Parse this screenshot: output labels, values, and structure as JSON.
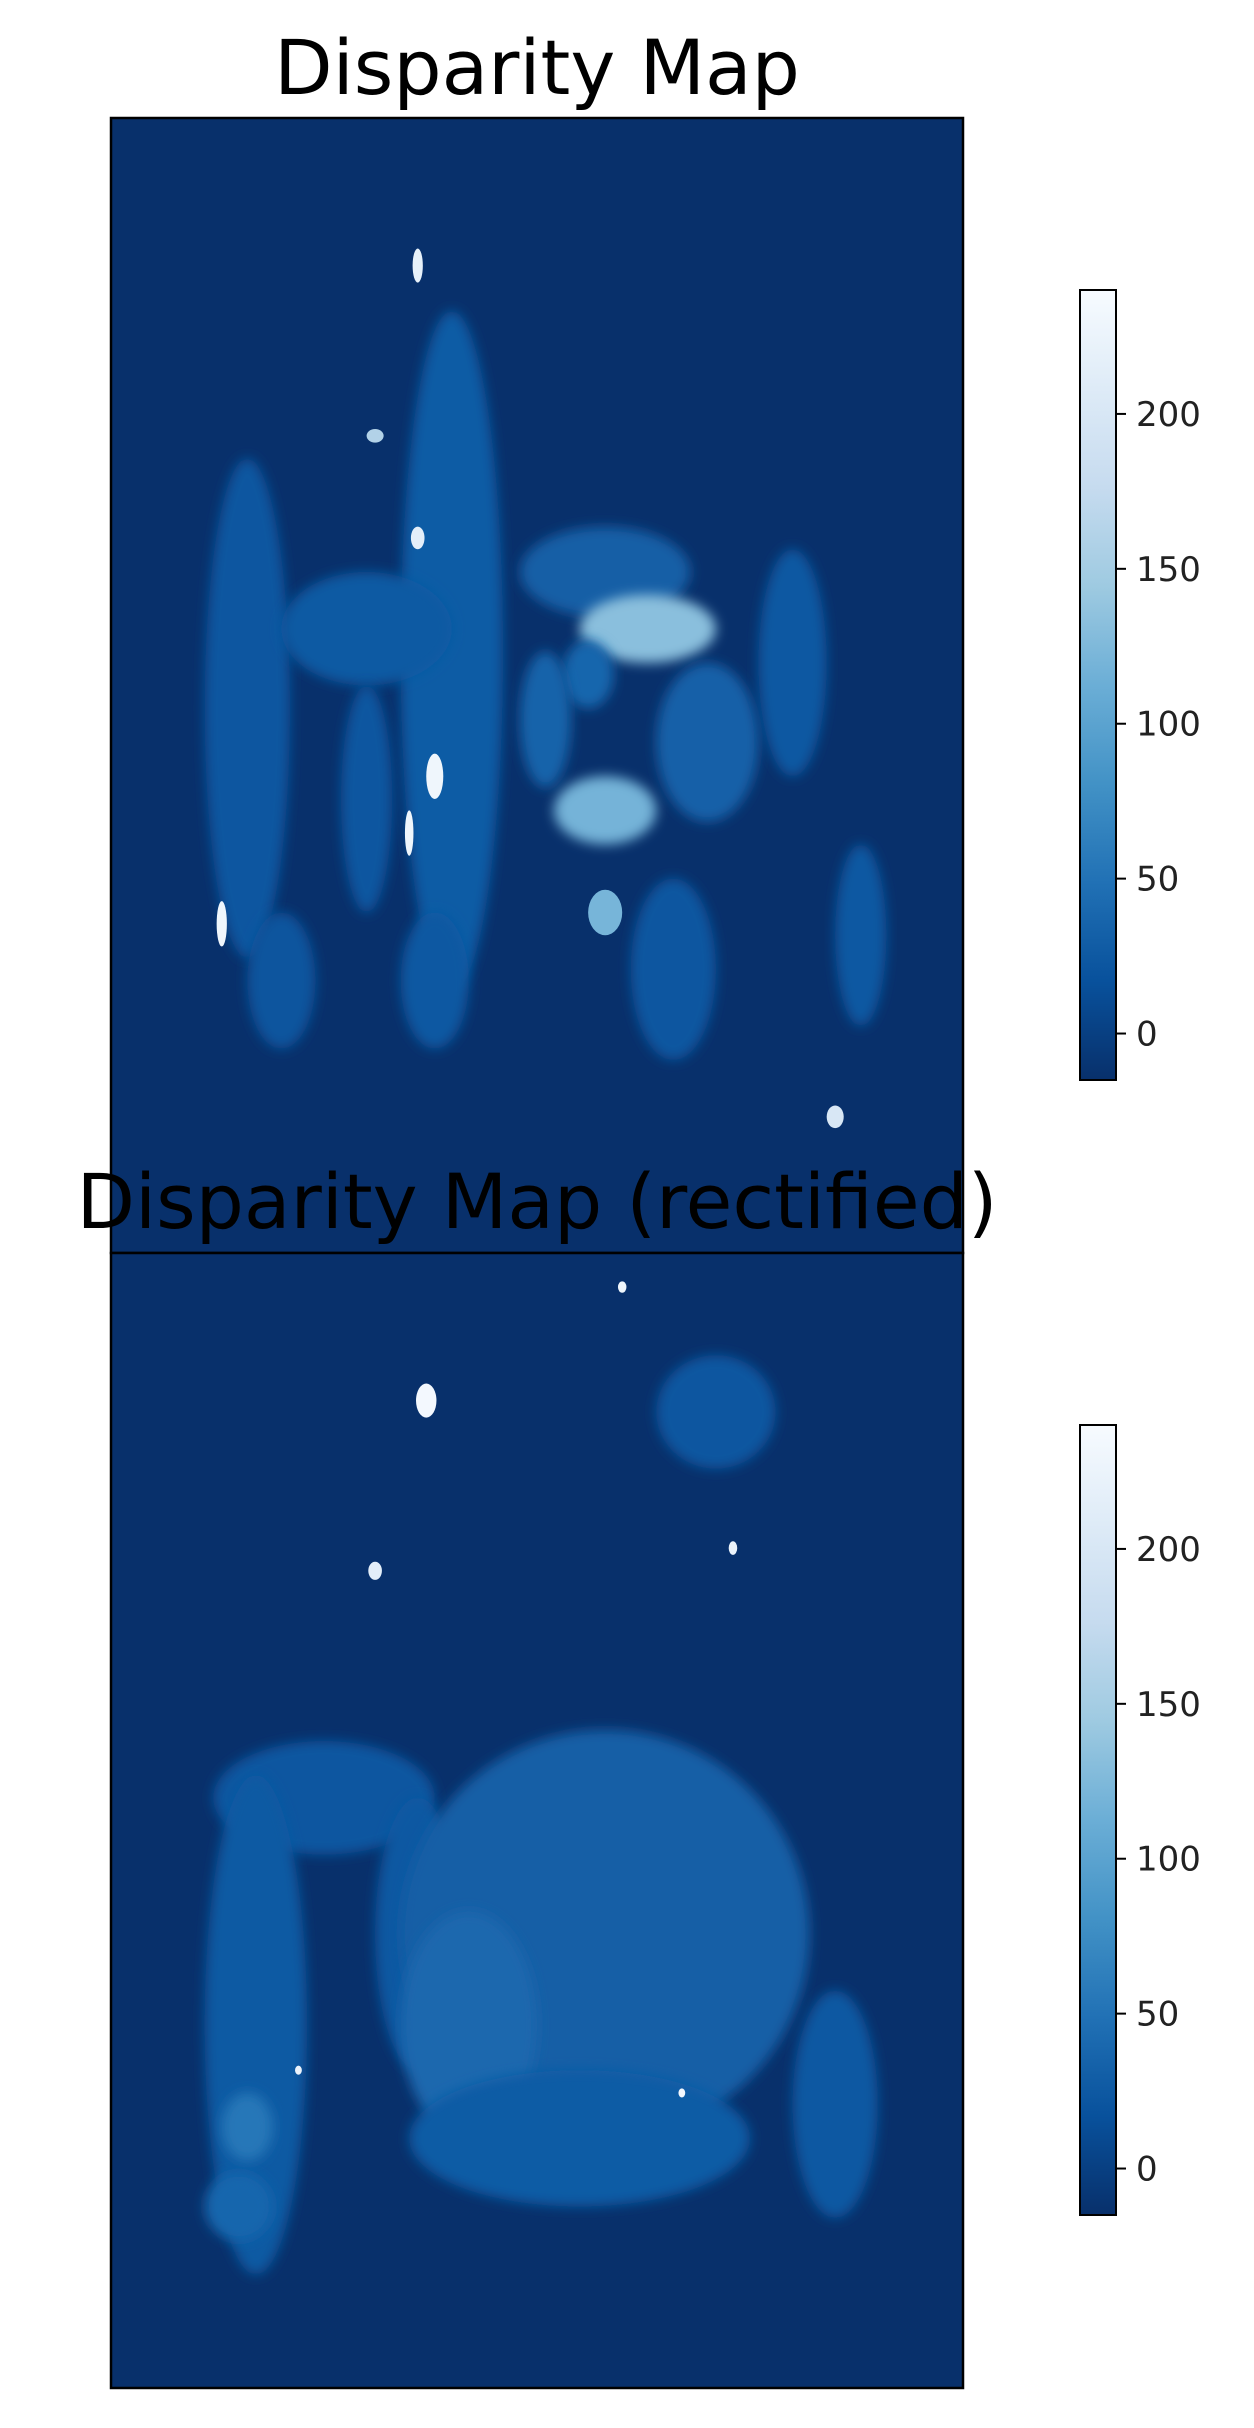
{
  "chart_data": [
    {
      "type": "heatmap",
      "title": "Disparity Map",
      "xlabel": "",
      "ylabel": "",
      "colormap": "Blues_r",
      "colorbar": {
        "ticks": [
          0,
          50,
          100,
          150,
          200
        ],
        "range": [
          -15,
          240
        ]
      },
      "background_value": -15,
      "grid": false,
      "axis_ticks": false,
      "blobs": [
        {
          "x": 0.4,
          "y": 0.47,
          "rx": 0.06,
          "ry": 0.3,
          "v": 28
        },
        {
          "x": 0.16,
          "y": 0.52,
          "rx": 0.05,
          "ry": 0.22,
          "v": 22
        },
        {
          "x": 0.3,
          "y": 0.45,
          "rx": 0.1,
          "ry": 0.05,
          "v": 26
        },
        {
          "x": 0.58,
          "y": 0.4,
          "rx": 0.1,
          "ry": 0.04,
          "v": 30
        },
        {
          "x": 0.63,
          "y": 0.45,
          "rx": 0.08,
          "ry": 0.03,
          "v": 132
        },
        {
          "x": 0.56,
          "y": 0.49,
          "rx": 0.03,
          "ry": 0.03,
          "v": 38
        },
        {
          "x": 0.51,
          "y": 0.53,
          "rx": 0.03,
          "ry": 0.06,
          "v": 35
        },
        {
          "x": 0.58,
          "y": 0.61,
          "rx": 0.06,
          "ry": 0.03,
          "v": 118
        },
        {
          "x": 0.7,
          "y": 0.55,
          "rx": 0.06,
          "ry": 0.07,
          "v": 32
        },
        {
          "x": 0.8,
          "y": 0.48,
          "rx": 0.04,
          "ry": 0.1,
          "v": 25
        },
        {
          "x": 0.58,
          "y": 0.7,
          "rx": 0.02,
          "ry": 0.02,
          "v": 120
        },
        {
          "x": 0.66,
          "y": 0.75,
          "rx": 0.05,
          "ry": 0.08,
          "v": 22
        },
        {
          "x": 0.38,
          "y": 0.76,
          "rx": 0.04,
          "ry": 0.06,
          "v": 24
        },
        {
          "x": 0.2,
          "y": 0.76,
          "rx": 0.04,
          "ry": 0.06,
          "v": 20
        },
        {
          "x": 0.88,
          "y": 0.72,
          "rx": 0.03,
          "ry": 0.08,
          "v": 24
        },
        {
          "x": 0.3,
          "y": 0.6,
          "rx": 0.03,
          "ry": 0.1,
          "v": 22
        },
        {
          "x": 0.38,
          "y": 0.58,
          "rx": 0.01,
          "ry": 0.02,
          "v": 230
        },
        {
          "x": 0.35,
          "y": 0.63,
          "rx": 0.005,
          "ry": 0.02,
          "v": 230
        },
        {
          "x": 0.13,
          "y": 0.71,
          "rx": 0.006,
          "ry": 0.02,
          "v": 230
        },
        {
          "x": 0.36,
          "y": 0.37,
          "rx": 0.008,
          "ry": 0.01,
          "v": 215
        },
        {
          "x": 0.31,
          "y": 0.28,
          "rx": 0.01,
          "ry": 0.006,
          "v": 160
        },
        {
          "x": 0.36,
          "y": 0.13,
          "rx": 0.006,
          "ry": 0.015,
          "v": 220
        },
        {
          "x": 0.85,
          "y": 0.88,
          "rx": 0.01,
          "ry": 0.01,
          "v": 200
        }
      ]
    },
    {
      "type": "heatmap",
      "title": "Disparity Map (rectified)",
      "xlabel": "",
      "ylabel": "",
      "colormap": "Blues_r",
      "colorbar": {
        "ticks": [
          0,
          50,
          100,
          150,
          200
        ],
        "range": [
          -15,
          240
        ]
      },
      "background_value": -15,
      "grid": false,
      "axis_ticks": false,
      "blobs": [
        {
          "x": 0.25,
          "y": 0.48,
          "rx": 0.13,
          "ry": 0.05,
          "v": 22
        },
        {
          "x": 0.17,
          "y": 0.68,
          "rx": 0.06,
          "ry": 0.22,
          "v": 26
        },
        {
          "x": 0.36,
          "y": 0.6,
          "rx": 0.05,
          "ry": 0.12,
          "v": 24
        },
        {
          "x": 0.58,
          "y": 0.6,
          "rx": 0.24,
          "ry": 0.18,
          "v": 30
        },
        {
          "x": 0.42,
          "y": 0.68,
          "rx": 0.08,
          "ry": 0.1,
          "v": 40
        },
        {
          "x": 0.55,
          "y": 0.78,
          "rx": 0.2,
          "ry": 0.06,
          "v": 28
        },
        {
          "x": 0.85,
          "y": 0.75,
          "rx": 0.05,
          "ry": 0.1,
          "v": 24
        },
        {
          "x": 0.16,
          "y": 0.77,
          "rx": 0.03,
          "ry": 0.03,
          "v": 55
        },
        {
          "x": 0.15,
          "y": 0.84,
          "rx": 0.04,
          "ry": 0.03,
          "v": 38
        },
        {
          "x": 0.71,
          "y": 0.14,
          "rx": 0.07,
          "ry": 0.05,
          "v": 22
        },
        {
          "x": 0.37,
          "y": 0.13,
          "rx": 0.012,
          "ry": 0.015,
          "v": 235
        },
        {
          "x": 0.31,
          "y": 0.28,
          "rx": 0.008,
          "ry": 0.008,
          "v": 215
        },
        {
          "x": 0.73,
          "y": 0.26,
          "rx": 0.005,
          "ry": 0.006,
          "v": 225
        },
        {
          "x": 0.6,
          "y": 0.03,
          "rx": 0.005,
          "ry": 0.005,
          "v": 230
        },
        {
          "x": 0.22,
          "y": 0.72,
          "rx": 0.004,
          "ry": 0.004,
          "v": 225
        },
        {
          "x": 0.67,
          "y": 0.74,
          "rx": 0.004,
          "ry": 0.004,
          "v": 235
        }
      ]
    }
  ]
}
